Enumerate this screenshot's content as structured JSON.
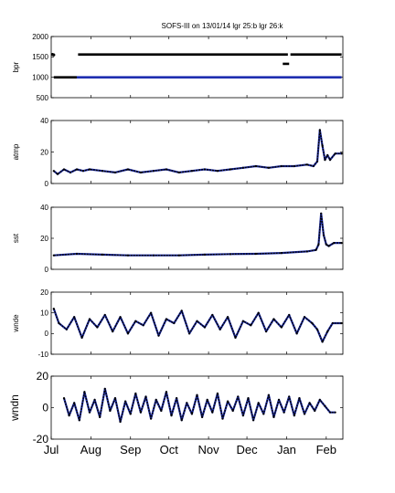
{
  "title": "SOFS-III on 13/01/14 lgr 25:b lgr 26:k",
  "x_tick_labels": [
    "Jul",
    "Aug",
    "Sep",
    "Oct",
    "Nov",
    "Dec",
    "Jan",
    "Feb"
  ],
  "colors": {
    "series_b": "#1f2fb0",
    "series_k": "#000000",
    "axis": "#000000"
  },
  "chart_data": [
    {
      "type": "scatter",
      "ylabel": "bpr",
      "ylim": [
        500,
        2000
      ],
      "yticks": [
        "500",
        "1000",
        "1500",
        "2000"
      ],
      "xlim": [
        0,
        228
      ],
      "series": [
        {
          "color": "k",
          "points": [
            [
              1,
              1560
            ],
            [
              2,
              1550
            ]
          ],
          "segments": [
            [
              2,
              20,
              1000
            ],
            [
              21,
              185,
              1560
            ],
            [
              187,
              227,
              1560
            ],
            [
              181,
              186,
              1330
            ]
          ]
        },
        {
          "color": "b",
          "points": [],
          "segments": [
            [
              20,
              227,
              1000
            ]
          ]
        }
      ]
    },
    {
      "type": "line",
      "ylabel": "atmp",
      "ylim": [
        0,
        40
      ],
      "yticks": [
        "0",
        "20",
        "40"
      ],
      "xlim": [
        0,
        228
      ],
      "x": [
        2,
        5,
        10,
        15,
        20,
        25,
        30,
        40,
        50,
        60,
        70,
        80,
        90,
        100,
        110,
        120,
        130,
        140,
        150,
        160,
        170,
        180,
        190,
        200,
        205,
        208,
        210,
        212,
        214,
        216,
        218,
        222,
        227
      ],
      "values": [
        8,
        6,
        9,
        7,
        9,
        8,
        9,
        8,
        7,
        9,
        7,
        8,
        9,
        7,
        8,
        9,
        8,
        9,
        10,
        11,
        10,
        11,
        11,
        12,
        11,
        14,
        34,
        24,
        15,
        18,
        15,
        19,
        19
      ]
    },
    {
      "type": "line",
      "ylabel": "sst",
      "ylim": [
        0,
        40
      ],
      "yticks": [
        "0",
        "20",
        "40"
      ],
      "xlim": [
        0,
        228
      ],
      "x": [
        2,
        20,
        40,
        60,
        80,
        100,
        120,
        140,
        160,
        180,
        200,
        207,
        209,
        211,
        213,
        215,
        217,
        221,
        227
      ],
      "values": [
        9,
        10,
        9.5,
        9,
        9,
        9,
        9.5,
        9.8,
        10,
        10.5,
        11.5,
        12.5,
        16,
        36,
        22,
        16,
        15,
        17,
        17
      ]
    },
    {
      "type": "line",
      "ylabel": "wnde",
      "ylim": [
        -10,
        20
      ],
      "yticks": [
        "-10",
        "0",
        "10",
        "20"
      ],
      "xlim": [
        0,
        228
      ],
      "x": [
        2,
        6,
        12,
        18,
        24,
        30,
        36,
        42,
        48,
        54,
        60,
        66,
        72,
        78,
        84,
        90,
        96,
        102,
        108,
        114,
        120,
        126,
        132,
        138,
        144,
        150,
        156,
        162,
        168,
        174,
        180,
        186,
        192,
        198,
        204,
        208,
        212,
        216,
        220,
        227
      ],
      "values": [
        12,
        5,
        2,
        8,
        -2,
        7,
        3,
        9,
        1,
        8,
        0,
        6,
        4,
        10,
        -1,
        7,
        5,
        11,
        0,
        6,
        3,
        9,
        2,
        8,
        -2,
        6,
        4,
        10,
        1,
        7,
        3,
        9,
        0,
        8,
        5,
        2,
        -4,
        1,
        5,
        5
      ]
    },
    {
      "type": "line",
      "ylabel": "wndn",
      "ylim": [
        -20,
        20
      ],
      "yticks": [
        "-20",
        "0",
        "20"
      ],
      "xlim": [
        0,
        228
      ],
      "x": [
        10,
        14,
        18,
        22,
        26,
        30,
        34,
        38,
        42,
        46,
        50,
        54,
        58,
        62,
        66,
        70,
        74,
        78,
        82,
        86,
        90,
        94,
        98,
        102,
        106,
        110,
        114,
        118,
        122,
        126,
        130,
        134,
        138,
        142,
        146,
        150,
        154,
        158,
        162,
        166,
        170,
        174,
        178,
        182,
        186,
        190,
        194,
        198,
        202,
        206,
        210,
        214,
        218,
        222
      ],
      "values": [
        6,
        -5,
        3,
        -8,
        10,
        -3,
        5,
        -6,
        12,
        -2,
        6,
        -9,
        4,
        -4,
        9,
        -3,
        7,
        -7,
        5,
        -2,
        10,
        -5,
        6,
        -8,
        3,
        -4,
        8,
        -6,
        5,
        -3,
        9,
        -7,
        4,
        -2,
        7,
        -5,
        6,
        -8,
        3,
        -4,
        8,
        -6,
        5,
        -3,
        7,
        -5,
        6,
        -4,
        3,
        -2,
        5,
        1,
        -3,
        -3
      ]
    }
  ]
}
